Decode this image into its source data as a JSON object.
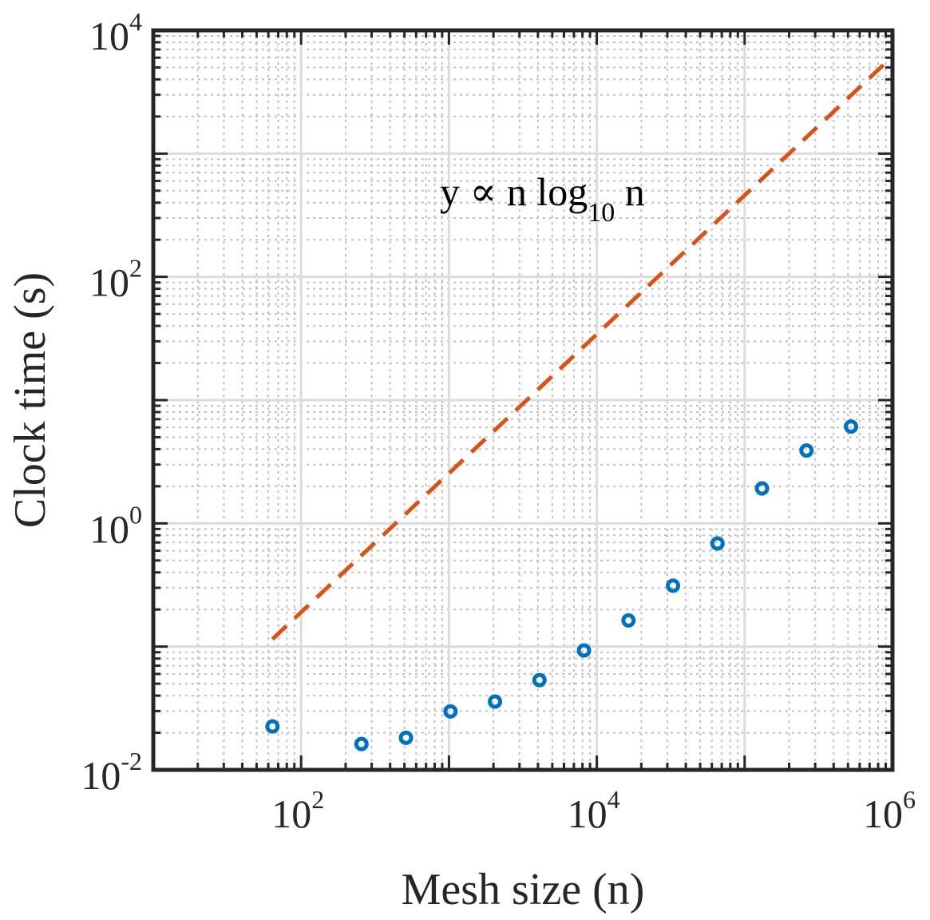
{
  "chart_data": {
    "type": "scatter",
    "xscale": "log",
    "yscale": "log",
    "xlim": [
      10,
      1000000
    ],
    "ylim": [
      0.01,
      10000
    ],
    "xlabel": "Mesh size (n)",
    "ylabel": "Clock time (s)",
    "grid": true,
    "xticks": [
      {
        "value": 100,
        "base": "10",
        "exp": "2"
      },
      {
        "value": 10000,
        "base": "10",
        "exp": "4"
      },
      {
        "value": 1000000,
        "base": "10",
        "exp": "6"
      }
    ],
    "yticks": [
      {
        "value": 0.01,
        "base": "10",
        "exp": "-2"
      },
      {
        "value": 1,
        "base": "10",
        "exp": "0"
      },
      {
        "value": 100,
        "base": "10",
        "exp": "2"
      },
      {
        "value": 10000,
        "base": "10",
        "exp": "4"
      }
    ],
    "series": [
      {
        "name": "Clock time",
        "kind": "scatter",
        "marker": "circle",
        "color": "#0072BD",
        "x": [
          64,
          256,
          512,
          1024,
          2048,
          4096,
          8192,
          16384,
          32768,
          65536,
          131072,
          262144,
          524288
        ],
        "y": [
          0.0225,
          0.0162,
          0.0182,
          0.0298,
          0.0358,
          0.0535,
          0.093,
          0.163,
          0.312,
          0.687,
          1.92,
          3.9,
          6.1
        ]
      },
      {
        "name": "y ∝ n log10 n",
        "kind": "reference-line",
        "style": "dashed",
        "color": "#D95319",
        "x": [
          64,
          1000000
        ],
        "y": [
          0.115,
          6150
        ]
      }
    ],
    "annotation": {
      "prefix": "y ∝ n log",
      "subscript": "10",
      "suffix": " n",
      "x": 1000,
      "y": 190
    }
  }
}
